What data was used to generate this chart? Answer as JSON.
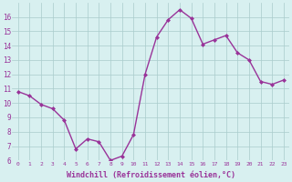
{
  "x": [
    0,
    1,
    2,
    3,
    4,
    5,
    6,
    7,
    8,
    9,
    10,
    11,
    12,
    13,
    14,
    15,
    16,
    17,
    18,
    19,
    20,
    21,
    22,
    23
  ],
  "y": [
    10.8,
    10.5,
    9.9,
    9.6,
    8.8,
    6.8,
    7.5,
    7.3,
    6.0,
    6.3,
    7.8,
    12.0,
    14.6,
    15.8,
    16.5,
    15.9,
    14.1,
    14.4,
    14.7,
    13.5,
    13.0,
    11.5,
    11.3,
    11.6
  ],
  "line_color": "#993399",
  "marker": "D",
  "marker_size": 2,
  "bg_color": "#d8f0f0",
  "grid_color": "#aacccc",
  "xlabel": "Windchill (Refroidissement éolien,°C)",
  "xlabel_color": "#993399",
  "tick_color": "#993399",
  "ylim": [
    6,
    17
  ],
  "xlim": [
    -0.5,
    23.5
  ],
  "yticks": [
    6,
    7,
    8,
    9,
    10,
    11,
    12,
    13,
    14,
    15,
    16
  ],
  "xticks": [
    0,
    1,
    2,
    3,
    4,
    5,
    6,
    7,
    8,
    9,
    10,
    11,
    12,
    13,
    14,
    15,
    16,
    17,
    18,
    19,
    20,
    21,
    22,
    23
  ],
  "ytick_fontsize": 5.5,
  "xtick_fontsize": 4.5,
  "xlabel_fontsize": 6.0,
  "linewidth": 1.0
}
